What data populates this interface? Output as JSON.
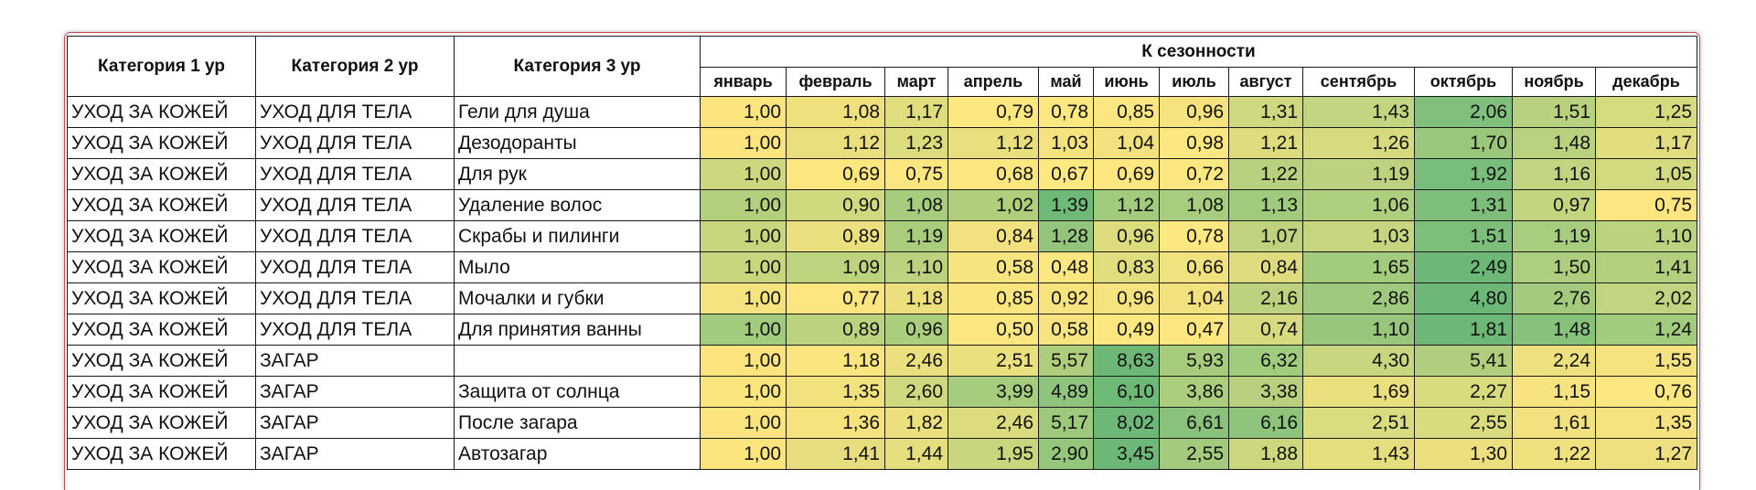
{
  "table": {
    "headers": {
      "cat1": "Категория 1 ур",
      "cat2": "Категория 2 ур",
      "cat3": "Категория 3 ур",
      "group": "К сезонности",
      "months": [
        "январь",
        "февраль",
        "март",
        "апрель",
        "май",
        "июнь",
        "июль",
        "август",
        "сентябрь",
        "октябрь",
        "ноябрь",
        "декабрь"
      ]
    },
    "rows": [
      {
        "cat1": "УХОД ЗА КОЖЕЙ",
        "cat2": "УХОД ДЛЯ ТЕЛА",
        "cat3": "Гели для душа",
        "values": [
          "1,00",
          "1,08",
          "1,17",
          "0,79",
          "0,78",
          "0,85",
          "0,96",
          "1,31",
          "1,43",
          "2,06",
          "1,51",
          "1,25"
        ],
        "colors": [
          "#fde47e",
          "#eee17d",
          "#e0dd7e",
          "#fde87f",
          "#fce780",
          "#fbe681",
          "#f4e37f",
          "#cfd87f",
          "#c2d580",
          "#80c07c",
          "#b7d17f",
          "#d7db7f"
        ]
      },
      {
        "cat1": "УХОД ЗА КОЖЕЙ",
        "cat2": "УХОД ДЛЯ ТЕЛА",
        "cat3": "Дезодоранты",
        "values": [
          "1,00",
          "1,12",
          "1,23",
          "1,12",
          "1,03",
          "1,04",
          "0,98",
          "1,21",
          "1,26",
          "1,70",
          "1,48",
          "1,17"
        ],
        "colors": [
          "#fde47e",
          "#eadf7e",
          "#dcdb7e",
          "#e9df7f",
          "#f5e37f",
          "#f2e27f",
          "#fde781",
          "#dedc7f",
          "#d8da7f",
          "#9bc77d",
          "#b9d27f",
          "#e2dd7f"
        ]
      },
      {
        "cat1": "УХОД ЗА КОЖЕЙ",
        "cat2": "УХОД ДЛЯ ТЕЛА",
        "cat3": "Для рук",
        "values": [
          "1,00",
          "0,69",
          "0,75",
          "0,68",
          "0,67",
          "0,69",
          "0,72",
          "1,22",
          "1,19",
          "1,92",
          "1,16",
          "1,05"
        ],
        "colors": [
          "#ccd77e",
          "#fee67f",
          "#fbe67f",
          "#fee780",
          "#fee881",
          "#fee781",
          "#fde781",
          "#b8d17e",
          "#bcd27f",
          "#79bd7a",
          "#c2d47f",
          "#d3d97f"
        ]
      },
      {
        "cat1": "УХОД ЗА КОЖЕЙ",
        "cat2": "УХОД ДЛЯ ТЕЛА",
        "cat3": "Удаление волос",
        "values": [
          "1,00",
          "0,90",
          "1,08",
          "1,02",
          "1,39",
          "1,12",
          "1,08",
          "1,13",
          "1,06",
          "1,31",
          "0,97",
          "0,75"
        ],
        "colors": [
          "#b3d07d",
          "#d1d97f",
          "#a7cc7e",
          "#b0cf7d",
          "#6fb977",
          "#a2cb7e",
          "#a9cd7e",
          "#a0ca7d",
          "#aecf7e",
          "#7dbf7a",
          "#c4d57f",
          "#fde581"
        ]
      },
      {
        "cat1": "УХОД ЗА КОЖЕЙ",
        "cat2": "УХОД ДЛЯ ТЕЛА",
        "cat3": "Скрабы и пилинги",
        "values": [
          "1,00",
          "0,89",
          "1,19",
          "0,84",
          "1,28",
          "0,96",
          "0,78",
          "1,07",
          "1,03",
          "1,51",
          "1,19",
          "1,10"
        ],
        "colors": [
          "#c9d67e",
          "#eae07f",
          "#a9cd7d",
          "#f1e27f",
          "#94c57c",
          "#dcdc7f",
          "#fde780",
          "#bfd37f",
          "#c6d67f",
          "#7dbf7a",
          "#a9cd7e",
          "#bcd37e"
        ]
      },
      {
        "cat1": "УХОД ЗА КОЖЕЙ",
        "cat2": "УХОД ДЛЯ ТЕЛА",
        "cat3": "Мыло",
        "values": [
          "1,00",
          "1,09",
          "1,10",
          "0,58",
          "0,48",
          "0,83",
          "0,66",
          "0,84",
          "1,65",
          "2,49",
          "1,50",
          "1,41"
        ],
        "colors": [
          "#c9d67e",
          "#bed37e",
          "#bcd27e",
          "#f6e47f",
          "#fde780",
          "#e0dd7f",
          "#f0e27f",
          "#dfdc7f",
          "#a3cb7d",
          "#6eb877",
          "#adce7e",
          "#b3d07e"
        ]
      },
      {
        "cat1": "УХОД ЗА КОЖЕЙ",
        "cat2": "УХОД ДЛЯ ТЕЛА",
        "cat3": "Мочалки и губки",
        "values": [
          "1,00",
          "0,77",
          "1,18",
          "0,85",
          "0,92",
          "0,96",
          "1,04",
          "2,16",
          "2,86",
          "4,80",
          "2,76",
          "2,02"
        ],
        "colors": [
          "#f4e37f",
          "#fde57f",
          "#ece07e",
          "#fbe57f",
          "#f8e47f",
          "#f5e37f",
          "#f1e27f",
          "#bcd27f",
          "#9fc97e",
          "#6eb877",
          "#a3ca7e",
          "#c2d47f"
        ]
      },
      {
        "cat1": "УХОД ЗА КОЖЕЙ",
        "cat2": "УХОД ДЛЯ ТЕЛА",
        "cat3": "Для принятия ванны",
        "values": [
          "1,00",
          "0,89",
          "0,96",
          "0,50",
          "0,58",
          "0,49",
          "0,47",
          "0,74",
          "1,10",
          "1,81",
          "1,48",
          "1,24"
        ],
        "colors": [
          "#a2cb7d",
          "#bbd27e",
          "#aace7e",
          "#fce67f",
          "#f7e480",
          "#fde780",
          "#fee781",
          "#d8da7f",
          "#97c67c",
          "#6eb877",
          "#87c27b",
          "#a3cb7e"
        ]
      },
      {
        "cat1": "УХОД ЗА КОЖЕЙ",
        "cat2": "ЗАГАР",
        "cat3": "",
        "values": [
          "1,00",
          "1,18",
          "2,46",
          "2,51",
          "5,57",
          "8,63",
          "5,93",
          "6,32",
          "4,30",
          "5,41",
          "2,24",
          "1,55"
        ],
        "colors": [
          "#fde47e",
          "#fbe57e",
          "#ebe07e",
          "#eae07e",
          "#aece7d",
          "#6eb877",
          "#a6cb7d",
          "#a1cb7d",
          "#c7d67f",
          "#b1ce7e",
          "#ede17f",
          "#f5e37f"
        ]
      },
      {
        "cat1": "УХОД ЗА КОЖЕЙ",
        "cat2": "ЗАГАР",
        "cat3": "Защита от солнца",
        "values": [
          "1,00",
          "1,35",
          "2,60",
          "3,99",
          "4,89",
          "6,10",
          "3,86",
          "3,38",
          "1,69",
          "2,27",
          "1,15",
          "0,76"
        ],
        "colors": [
          "#fde57e",
          "#f2e27e",
          "#cfd87e",
          "#a6cc7d",
          "#8ec47c",
          "#6fb977",
          "#aacd7e",
          "#b9d17f",
          "#ebe07f",
          "#dadb7f",
          "#f7e480",
          "#fde781"
        ]
      },
      {
        "cat1": "УХОД ЗА КОЖЕЙ",
        "cat2": "ЗАГАР",
        "cat3": "После загара",
        "values": [
          "1,00",
          "1,36",
          "1,82",
          "2,46",
          "5,17",
          "8,02",
          "6,61",
          "6,16",
          "2,51",
          "2,55",
          "1,61",
          "1,35"
        ],
        "colors": [
          "#fde47e",
          "#f6e37e",
          "#ecdf7e",
          "#dcdb7e",
          "#9ec97d",
          "#6eb877",
          "#88c27b",
          "#8fc47c",
          "#dbdb7f",
          "#dadb7f",
          "#f1e17f",
          "#f6e380"
        ]
      },
      {
        "cat1": "УХОД ЗА КОЖЕЙ",
        "cat2": "ЗАГАР",
        "cat3": "Автозагар",
        "values": [
          "1,00",
          "1,41",
          "1,44",
          "1,95",
          "2,90",
          "3,45",
          "2,55",
          "1,88",
          "1,43",
          "1,30",
          "1,22",
          "1,27"
        ],
        "colors": [
          "#fde57e",
          "#e6de7e",
          "#e5de7e",
          "#c8d67e",
          "#94c67c",
          "#6eb877",
          "#a4cb7d",
          "#ccd77e",
          "#e5de7f",
          "#ecdf7f",
          "#f0e17f",
          "#eee07f"
        ]
      }
    ]
  }
}
